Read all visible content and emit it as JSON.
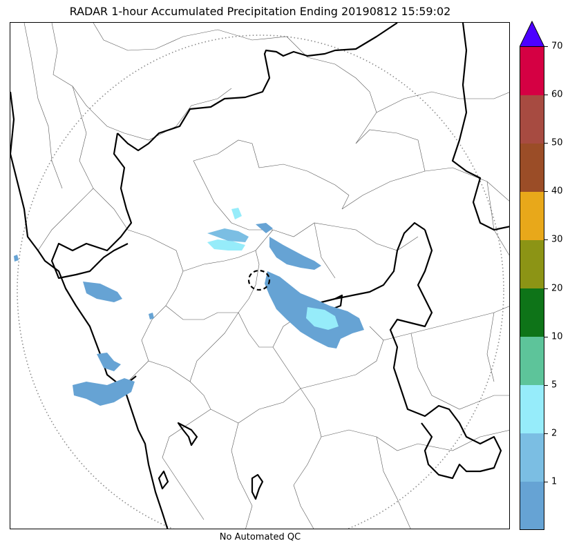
{
  "title": "RADAR 1-hour Accumulated Precipitation Ending 20190812 15:59:02",
  "footer": "No Automated QC",
  "colorbar": {
    "extend": "max",
    "extend_color": "#4c00ff",
    "bins": [
      {
        "color": "#66a3d4"
      },
      {
        "color": "#7bbee3",
        "label": "1"
      },
      {
        "color": "#96ecfa",
        "label": "2"
      },
      {
        "color": "#5dc49a",
        "label": "5"
      },
      {
        "color": "#0e7418",
        "label": "10"
      },
      {
        "color": "#8c9415",
        "label": "20"
      },
      {
        "color": "#e8a81a",
        "label": "30"
      },
      {
        "color": "#9b4d27",
        "label": "40"
      },
      {
        "color": "#a74b41",
        "label": "50"
      },
      {
        "color": "#d50043",
        "label": "60"
      }
    ],
    "top_label": "70"
  },
  "colors": {
    "precip_light": "#66a3d4",
    "precip_mid": "#96ecfa",
    "coastline": "#000000",
    "district_line": "#555555",
    "range_ring": "#888888"
  }
}
